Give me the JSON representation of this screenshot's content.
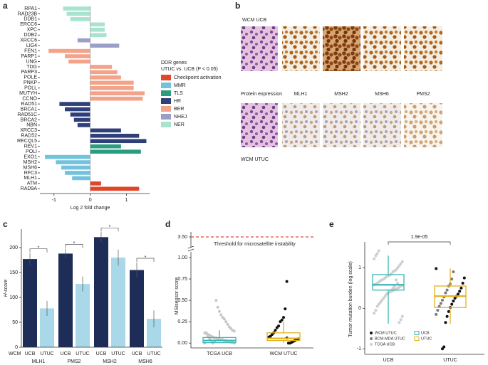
{
  "chart_data": [
    {
      "type": "barh",
      "panel": "a",
      "categories": [
        "RPA1",
        "RAD23B",
        "DDB1",
        "ERCC6",
        "XPC",
        "DDB2",
        "XRCC6",
        "LIG4",
        "FEN1",
        "PARP1",
        "UNG",
        "TDG",
        "PARP3",
        "POLE",
        "PNKP",
        "POLL",
        "MUTYH",
        "CCNO",
        "RAD51",
        "BRCA1",
        "RAD51C",
        "BRCA2",
        "NBN",
        "XRCC3",
        "RAD52",
        "RECQL5",
        "REV1",
        "POLI",
        "EXO1",
        "MSH2",
        "MSH6",
        "RFC3",
        "MLH1",
        "ATM",
        "RAD9A"
      ],
      "series": [
        {
          "name": "Checkpoint activation",
          "color": "#e0462a",
          "values": [
            null,
            null,
            null,
            null,
            null,
            null,
            null,
            null,
            null,
            null,
            null,
            null,
            null,
            null,
            null,
            null,
            null,
            null,
            null,
            null,
            null,
            null,
            null,
            null,
            null,
            null,
            null,
            null,
            null,
            null,
            null,
            null,
            null,
            0.3,
            1.35
          ]
        },
        {
          "name": "MMR",
          "color": "#72c2dd",
          "values": [
            null,
            null,
            null,
            null,
            null,
            null,
            null,
            null,
            null,
            null,
            null,
            null,
            null,
            null,
            null,
            null,
            null,
            null,
            null,
            null,
            null,
            null,
            null,
            null,
            null,
            null,
            null,
            null,
            -1.25,
            -0.95,
            -0.8,
            -0.7,
            -0.5,
            null,
            null
          ]
        },
        {
          "name": "TLS",
          "color": "#2a9d80",
          "values": [
            null,
            null,
            null,
            null,
            null,
            null,
            null,
            null,
            null,
            null,
            null,
            null,
            null,
            null,
            null,
            null,
            null,
            null,
            null,
            null,
            null,
            null,
            null,
            null,
            null,
            null,
            0.85,
            1.4,
            null,
            null,
            null,
            null,
            null,
            null,
            null
          ]
        },
        {
          "name": "HR",
          "color": "#2f3f7a",
          "values": [
            null,
            null,
            null,
            null,
            null,
            null,
            null,
            null,
            null,
            null,
            null,
            null,
            null,
            null,
            null,
            null,
            null,
            null,
            -0.85,
            -0.7,
            -0.55,
            -0.45,
            -0.35,
            0.85,
            1.35,
            1.55,
            null,
            null,
            null,
            null,
            null,
            null,
            null,
            null,
            null
          ]
        },
        {
          "name": "BER",
          "color": "#f3a38a",
          "values": [
            null,
            null,
            null,
            null,
            null,
            null,
            null,
            null,
            -1.15,
            -0.7,
            -0.6,
            0.6,
            0.75,
            0.85,
            1.2,
            1.2,
            1.5,
            1.45,
            null,
            null,
            null,
            null,
            null,
            null,
            null,
            null,
            null,
            null,
            null,
            null,
            null,
            null,
            null,
            null,
            null
          ]
        },
        {
          "name": "NHEJ",
          "color": "#9b9ec7",
          "values": [
            null,
            null,
            null,
            null,
            null,
            null,
            -0.35,
            0.8,
            null,
            null,
            null,
            null,
            null,
            null,
            null,
            null,
            null,
            null,
            null,
            null,
            null,
            null,
            null,
            null,
            null,
            null,
            null,
            null,
            null,
            null,
            null,
            null,
            null,
            null,
            null
          ]
        },
        {
          "name": "NER",
          "color": "#a8e3cf",
          "values": [
            -0.75,
            -0.65,
            -0.55,
            0.4,
            0.4,
            0.45,
            null,
            null,
            null,
            null,
            null,
            null,
            null,
            null,
            null,
            null,
            null,
            null,
            null,
            null,
            null,
            null,
            null,
            null,
            null,
            null,
            null,
            null,
            null,
            null,
            null,
            null,
            null,
            null,
            null
          ]
        }
      ],
      "xlim": [
        -1.35,
        1.6
      ],
      "xticks": [
        -1,
        0,
        1
      ],
      "xlabel": "Log 2 fold change",
      "legend_title": "DDR genes",
      "legend_subtitle": "UTUC vs. UCB (P < 0.05)"
    },
    {
      "type": "bar",
      "panel": "c",
      "ylabel": "H-score",
      "group_label": "WCM",
      "categories": [
        "MLH1",
        "PMS2",
        "MSH2",
        "MSH6"
      ],
      "series": [
        {
          "name": "UCB",
          "color": "#1e2d58",
          "values": [
            177,
            188,
            221,
            155
          ],
          "errors": [
            12,
            10,
            10,
            15
          ]
        },
        {
          "name": "UTUC",
          "color": "#a9d8e8",
          "values": [
            78,
            127,
            180,
            57
          ],
          "errors": [
            15,
            15,
            16,
            17
          ]
        }
      ],
      "significance": [
        "*",
        "*",
        "*",
        "*"
      ],
      "ylim": [
        0,
        240
      ],
      "yticks": [
        0,
        50,
        100,
        150,
        200
      ]
    },
    {
      "type": "box",
      "panel": "d",
      "ylabel": "MSIsensor score",
      "categories": [
        "TCGA UCB",
        "WCM UTUC"
      ],
      "boxes": [
        {
          "color": "#3bb5b5",
          "min": 0,
          "q1": 0.005,
          "median": 0.03,
          "q3": 0.065,
          "max": 0.15
        },
        {
          "color": "#e3b21b",
          "min": 0,
          "q1": 0.03,
          "median": 0.055,
          "q3": 0.12,
          "max": 0.25
        }
      ],
      "point_sets": [
        {
          "color": "#c8c8c8",
          "category": 0,
          "values": [
            0,
            0,
            0.01,
            0.01,
            0.02,
            0.02,
            0.03,
            0.03,
            0.04,
            0.04,
            0.05,
            0.05,
            0.06,
            0.06,
            0.07,
            0.08,
            0.09,
            0.1,
            0.11,
            0.12,
            0.14,
            0.15,
            0.17,
            0.19,
            0.22,
            0.25,
            0.28,
            0.3,
            0.33,
            0.37,
            0.42,
            0.5,
            0.02,
            0,
            0.03,
            0.05,
            0.08,
            0.12
          ]
        },
        {
          "color": "#111111",
          "category": 1,
          "values": [
            0.72,
            0.4,
            0.3,
            0.27,
            0.25,
            0.2,
            0.18,
            0.15,
            0.12,
            0.1,
            0.08,
            0.07,
            0.05,
            0.04,
            0.03,
            0.02,
            0.01,
            0,
            0,
            0.06
          ]
        }
      ],
      "threshold": {
        "value": 3.5,
        "label": "Threshold for microsatellite instability",
        "color": "#e0463a"
      },
      "upper_tick": {
        "value": 3.5,
        "label": "3.50"
      },
      "ylim": [
        -0.04,
        1.05
      ],
      "yticks": [
        {
          "value": 0,
          "label": "0.00"
        },
        {
          "value": 0.25,
          "label": "0.25"
        },
        {
          "value": 0.5,
          "label": "0.50"
        },
        {
          "value": 0.75,
          "label": "0.75"
        },
        {
          "value": 1,
          "label": "1.00"
        }
      ]
    },
    {
      "type": "box",
      "panel": "e",
      "ylabel": "Tumor mutation burden (log scale)",
      "categories": [
        "UCB",
        "UTUC"
      ],
      "boxes": [
        {
          "name": "UCB",
          "color": "#3bb5b5",
          "min": -0.38,
          "q1": 0.45,
          "median": 0.58,
          "q3": 0.83,
          "max": 1.3
        },
        {
          "name": "UTUC",
          "color": "#e3b21b",
          "min": -0.38,
          "q1": 0.02,
          "median": 0.3,
          "q3": 0.55,
          "max": 0.98
        }
      ],
      "point_sets": [
        {
          "name": "WCM UTUC",
          "color": "#111111",
          "category": 1,
          "values": [
            0.98,
            0.75,
            0.62,
            0.5,
            0.42,
            0.35,
            0.3,
            0.25,
            0.18,
            0.1,
            0.02,
            -0.08,
            -0.2,
            -0.35,
            -0.95,
            -1.0
          ]
        },
        {
          "name": "BCM-MDA UTUC",
          "color": "#7a7a7a",
          "category": 1,
          "values": [
            0.9,
            0.72,
            0.6,
            0.55,
            0.45,
            0.38,
            0.28,
            0.2,
            0.12,
            0.05,
            -0.05,
            -0.15
          ]
        },
        {
          "name": "TCGA UCB",
          "color": "#cfcfcf",
          "category": 0,
          "values": [
            1.42,
            1.35,
            1.3,
            1.22,
            1.15,
            1.1,
            1.05,
            1.0,
            0.95,
            0.92,
            0.9,
            0.85,
            0.82,
            0.8,
            0.78,
            0.75,
            0.72,
            0.7,
            0.68,
            0.65,
            0.62,
            0.6,
            0.58,
            0.56,
            0.55,
            0.52,
            0.5,
            0.48,
            0.46,
            0.44,
            0.42,
            0.4,
            0.38,
            0.35,
            0.3,
            0.25,
            0.2,
            0.15,
            0.1,
            0.05,
            -0.05,
            -0.12,
            -0.2,
            -0.28,
            -0.35,
            0.62,
            0.7,
            0.55,
            0.5,
            0.45
          ]
        }
      ],
      "pvalue": "1.9e-05",
      "ylim": [
        -1.1,
        1.55
      ],
      "yticks": [
        -1,
        0,
        1
      ]
    }
  ],
  "panel_b": {
    "panel": "b",
    "top_label": "WCM UCB",
    "middle_label": "Protein expression",
    "columns": [
      "MLH1",
      "MSH2",
      "MSH6",
      "PMS2"
    ],
    "bottom_label": "WCM UTUC"
  }
}
